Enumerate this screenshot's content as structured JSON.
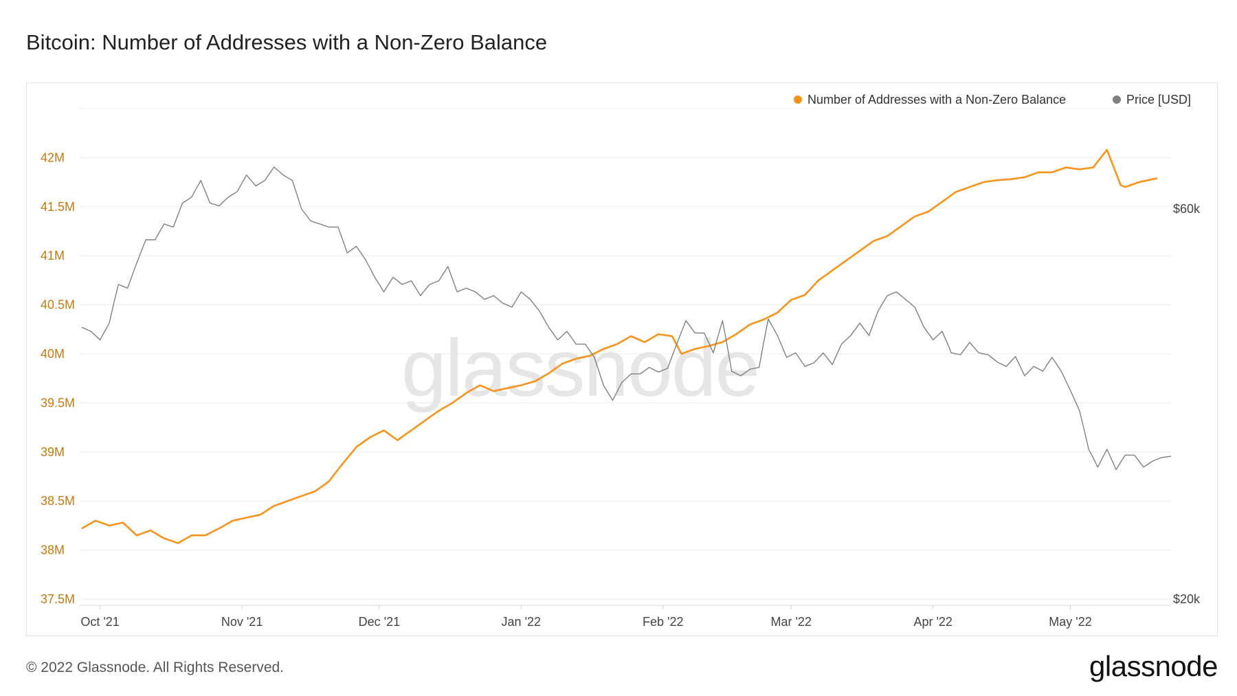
{
  "title": "Bitcoin: Number of Addresses with a Non-Zero Balance",
  "footer": {
    "copyright": "© 2022 Glassnode. All Rights Reserved.",
    "logo": "glassnode"
  },
  "colors": {
    "addresses": "#f7931a",
    "price": "#808080",
    "left_tick": "#c57a10",
    "grid": "#ececec",
    "watermark": "#e6e6e6"
  },
  "chart_data": {
    "type": "line",
    "title": "Bitcoin: Number of Addresses with a Non-Zero Balance",
    "watermark": "glassnode",
    "x_ticks": [
      "Oct '21",
      "Nov '21",
      "Dec '21",
      "Jan '22",
      "Feb '22",
      "Mar '22",
      "Apr '22",
      "May '22"
    ],
    "x_tick_day_index": [
      4,
      35,
      65,
      96,
      127,
      155,
      186,
      216
    ],
    "x_day_count": 239,
    "start_date": "2021-09-27",
    "left_axis": {
      "label": "Number of Addresses with a Non-Zero Balance",
      "ticks": [
        42.0,
        41.5,
        41.0,
        40.5,
        40.0,
        39.5,
        39.0,
        38.5,
        38.0,
        37.5
      ],
      "tick_labels": [
        "42M",
        "41.5M",
        "41M",
        "40.5M",
        "40M",
        "39.5M",
        "39M",
        "38.5M",
        "38M",
        "37.5M"
      ],
      "unit": "million",
      "range": [
        37.5,
        42.5
      ]
    },
    "right_axis": {
      "label": "Price [USD]",
      "scale": "log",
      "tick_values": [
        60000,
        20000
      ],
      "tick_labels": [
        "$60k",
        "$20k"
      ]
    },
    "legend": {
      "position": "top-right",
      "entries": [
        "Number of Addresses with a Non-Zero Balance",
        "Price [USD]"
      ]
    },
    "series": [
      {
        "name": "Number of Addresses with a Non-Zero Balance",
        "axis": "left",
        "color": "#f7931a",
        "anchors_day": [
          0,
          3,
          6,
          9,
          12,
          15,
          18,
          21,
          24,
          27,
          30,
          33,
          36,
          39,
          42,
          45,
          48,
          51,
          54,
          57,
          60,
          63,
          66,
          69,
          72,
          75,
          78,
          81,
          84,
          87,
          90,
          93,
          96,
          99,
          102,
          105,
          108,
          111,
          114,
          117,
          120,
          123,
          126,
          129,
          131,
          134,
          137,
          140,
          143,
          146,
          149,
          152,
          155,
          158,
          161,
          164,
          167,
          170,
          173,
          176,
          179,
          182,
          185,
          188,
          191,
          194,
          197,
          200,
          203,
          206,
          209,
          212,
          215,
          218,
          221,
          224,
          227,
          228,
          231,
          234,
          235
        ],
        "anchors_value": [
          38.22,
          38.3,
          38.25,
          38.28,
          38.15,
          38.2,
          38.12,
          38.07,
          38.15,
          38.15,
          38.22,
          38.3,
          38.33,
          38.36,
          38.45,
          38.5,
          38.55,
          38.6,
          38.7,
          38.88,
          39.05,
          39.15,
          39.22,
          39.12,
          39.22,
          39.32,
          39.42,
          39.5,
          39.6,
          39.68,
          39.62,
          39.65,
          39.68,
          39.72,
          39.8,
          39.9,
          39.95,
          39.98,
          40.05,
          40.1,
          40.18,
          40.12,
          40.2,
          40.18,
          40.0,
          40.05,
          40.08,
          40.12,
          40.2,
          40.3,
          40.35,
          40.42,
          40.55,
          40.6,
          40.75,
          40.85,
          40.95,
          41.05,
          41.15,
          41.2,
          41.3,
          41.4,
          41.45,
          41.55,
          41.65,
          41.7,
          41.75,
          41.77,
          41.78,
          41.8,
          41.85,
          41.85,
          41.9,
          41.88,
          41.9,
          42.08,
          41.72,
          41.7,
          41.75,
          41.78,
          41.79
        ]
      },
      {
        "name": "Price [USD]",
        "axis": "right",
        "color": "#808080",
        "anchors_day": [
          0,
          2,
          4,
          6,
          8,
          10,
          12,
          14,
          16,
          18,
          20,
          22,
          24,
          26,
          28,
          30,
          32,
          34,
          36,
          38,
          40,
          42,
          44,
          46,
          48,
          50,
          52,
          54,
          56,
          58,
          60,
          62,
          64,
          66,
          68,
          70,
          72,
          74,
          76,
          78,
          80,
          82,
          84,
          86,
          88,
          90,
          92,
          94,
          96,
          98,
          100,
          102,
          104,
          106,
          108,
          110,
          112,
          114,
          116,
          118,
          120,
          122,
          124,
          126,
          128,
          130,
          132,
          134,
          136,
          138,
          140,
          142,
          144,
          146,
          148,
          150,
          152,
          154,
          156,
          158,
          160,
          162,
          164,
          166,
          168,
          170,
          172,
          174,
          176,
          178,
          180,
          182,
          184,
          186,
          188,
          190,
          192,
          194,
          196,
          198,
          200,
          202,
          204,
          206,
          208,
          210,
          212,
          214,
          216,
          218,
          220,
          222,
          224,
          226,
          228,
          230,
          232,
          234,
          236,
          238
        ],
        "anchors_value": [
          43000,
          42500,
          41500,
          43500,
          48500,
          48000,
          51500,
          55000,
          55000,
          57500,
          57000,
          61000,
          62000,
          65000,
          61000,
          60500,
          62000,
          63000,
          66000,
          64000,
          65000,
          67500,
          66000,
          65000,
          60000,
          58000,
          57500,
          57000,
          57000,
          53000,
          54000,
          52000,
          49500,
          47500,
          49500,
          48500,
          49000,
          47000,
          48500,
          49000,
          51000,
          47500,
          48000,
          47500,
          46500,
          47000,
          46000,
          45500,
          47500,
          46500,
          45000,
          43000,
          41500,
          42500,
          41000,
          41000,
          39500,
          36500,
          35000,
          36800,
          37700,
          37700,
          38400,
          37900,
          38300,
          41000,
          43800,
          42300,
          42300,
          40000,
          43800,
          38000,
          37500,
          38200,
          38400,
          44000,
          42000,
          39500,
          40000,
          38500,
          38900,
          40000,
          38700,
          41000,
          42000,
          43500,
          42000,
          45000,
          47000,
          47500,
          46500,
          45500,
          43000,
          41500,
          42500,
          40000,
          39800,
          41200,
          40000,
          39800,
          39000,
          38500,
          39600,
          37500,
          38500,
          38000,
          39500,
          38000,
          36000,
          34000,
          30500,
          29000,
          30500,
          28800,
          30000,
          30000,
          29000,
          29500,
          29800,
          29900
        ]
      }
    ]
  }
}
